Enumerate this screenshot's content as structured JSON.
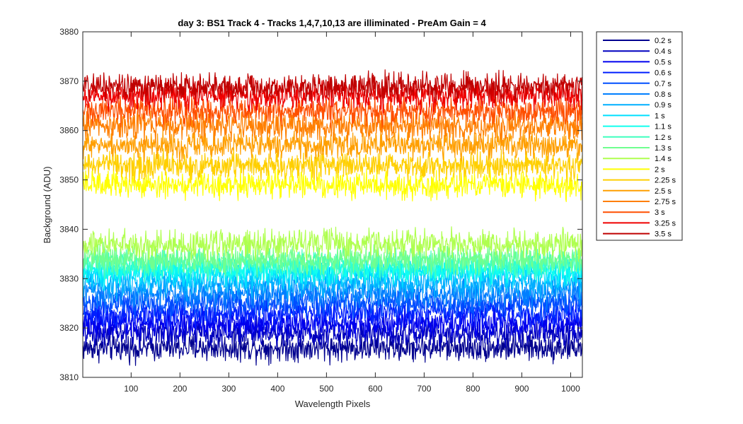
{
  "chart_data": {
    "type": "line",
    "title": "day 3: BS1  Track 4 - Tracks 1,4,7,10,13 are illiminated - PreAm Gain = 4",
    "xlabel": "Wavelength Pixels",
    "ylabel": "Background (ADU)",
    "xlim": [
      1,
      1024
    ],
    "ylim": [
      3810,
      3880
    ],
    "x_ticks": [
      100,
      200,
      300,
      400,
      500,
      600,
      700,
      800,
      900,
      1000
    ],
    "y_ticks": [
      3810,
      3820,
      3830,
      3840,
      3850,
      3860,
      3870,
      3880
    ],
    "grid": false,
    "legend_position": "outside-right",
    "series": [
      {
        "name": "0.2 s",
        "color": "#00008f",
        "mean": 3816,
        "noise_amplitude": 2.5
      },
      {
        "name": "0.4 s",
        "color": "#0000bf",
        "mean": 3819,
        "noise_amplitude": 2.5
      },
      {
        "name": "0.5 s",
        "color": "#0000ef",
        "mean": 3821,
        "noise_amplitude": 2.5
      },
      {
        "name": "0.6 s",
        "color": "#001fff",
        "mean": 3823,
        "noise_amplitude": 2.5
      },
      {
        "name": "0.7 s",
        "color": "#004fff",
        "mean": 3825,
        "noise_amplitude": 2.5
      },
      {
        "name": "0.8 s",
        "color": "#007fff",
        "mean": 3827,
        "noise_amplitude": 2.5
      },
      {
        "name": "0.9 s",
        "color": "#00afff",
        "mean": 3829,
        "noise_amplitude": 2.5
      },
      {
        "name": "1 s",
        "color": "#00dfff",
        "mean": 3831,
        "noise_amplitude": 2.5
      },
      {
        "name": "1.1 s",
        "color": "#10ffef",
        "mean": 3832,
        "noise_amplitude": 2.5
      },
      {
        "name": "1.2 s",
        "color": "#40ffbf",
        "mean": 3833,
        "noise_amplitude": 2.5
      },
      {
        "name": "1.3 s",
        "color": "#70ff8f",
        "mean": 3834,
        "noise_amplitude": 2.5
      },
      {
        "name": "1.4 s",
        "color": "#afff4f",
        "mean": 3837,
        "noise_amplitude": 2.5
      },
      {
        "name": "2 s",
        "color": "#ffff00",
        "mean": 3849,
        "noise_amplitude": 2.5
      },
      {
        "name": "2.25 s",
        "color": "#ffcf00",
        "mean": 3853,
        "noise_amplitude": 2.5
      },
      {
        "name": "2.5 s",
        "color": "#ff9f00",
        "mean": 3857,
        "noise_amplitude": 2.5
      },
      {
        "name": "2.75 s",
        "color": "#ff7f00",
        "mean": 3861,
        "noise_amplitude": 2.5
      },
      {
        "name": "3 s",
        "color": "#ff4f00",
        "mean": 3864,
        "noise_amplitude": 2.5
      },
      {
        "name": "3.25 s",
        "color": "#ef0000",
        "mean": 3867,
        "noise_amplitude": 2.5
      },
      {
        "name": "3.5 s",
        "color": "#bf0000",
        "mean": 3869,
        "noise_amplitude": 2.5
      }
    ]
  }
}
